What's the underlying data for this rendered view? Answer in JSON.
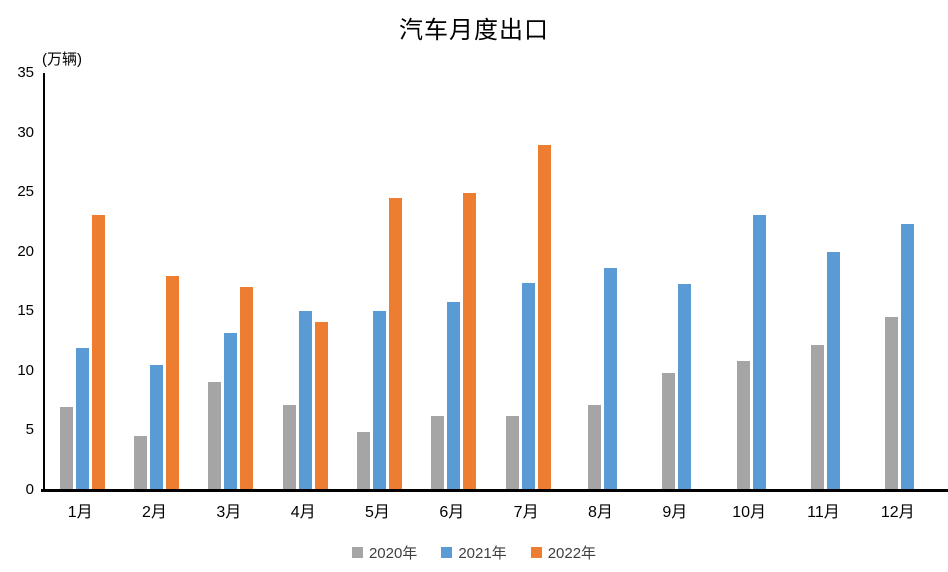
{
  "chart": {
    "title": "汽车月度出口",
    "unit": "(万辆)"
  },
  "chart_data": {
    "type": "bar",
    "title": "汽车月度出口",
    "unit_label": "(万辆)",
    "categories": [
      "1月",
      "2月",
      "3月",
      "4月",
      "5月",
      "6月",
      "7月",
      "8月",
      "9月",
      "10月",
      "11月",
      "12月"
    ],
    "series": [
      {
        "name": "2020年",
        "color": "#a5a5a5",
        "values": [
          7.0,
          4.5,
          9.1,
          7.1,
          4.9,
          6.2,
          6.2,
          7.1,
          9.8,
          10.8,
          12.2,
          14.5
        ]
      },
      {
        "name": "2021年",
        "color": "#5b9bd5",
        "values": [
          11.9,
          10.5,
          13.2,
          15.0,
          15.0,
          15.8,
          17.4,
          18.6,
          17.3,
          23.1,
          20.0,
          22.3
        ]
      },
      {
        "name": "2022年",
        "color": "#ed7d31",
        "values": [
          23.1,
          18.0,
          17.0,
          14.1,
          24.5,
          24.9,
          29.0,
          null,
          null,
          null,
          null,
          null
        ]
      }
    ],
    "ylim": [
      0,
      35
    ],
    "yticks": [
      0,
      5,
      10,
      15,
      20,
      25,
      30,
      35
    ],
    "grid": false,
    "legend_position": "bottom",
    "axis_color": "#000000"
  }
}
